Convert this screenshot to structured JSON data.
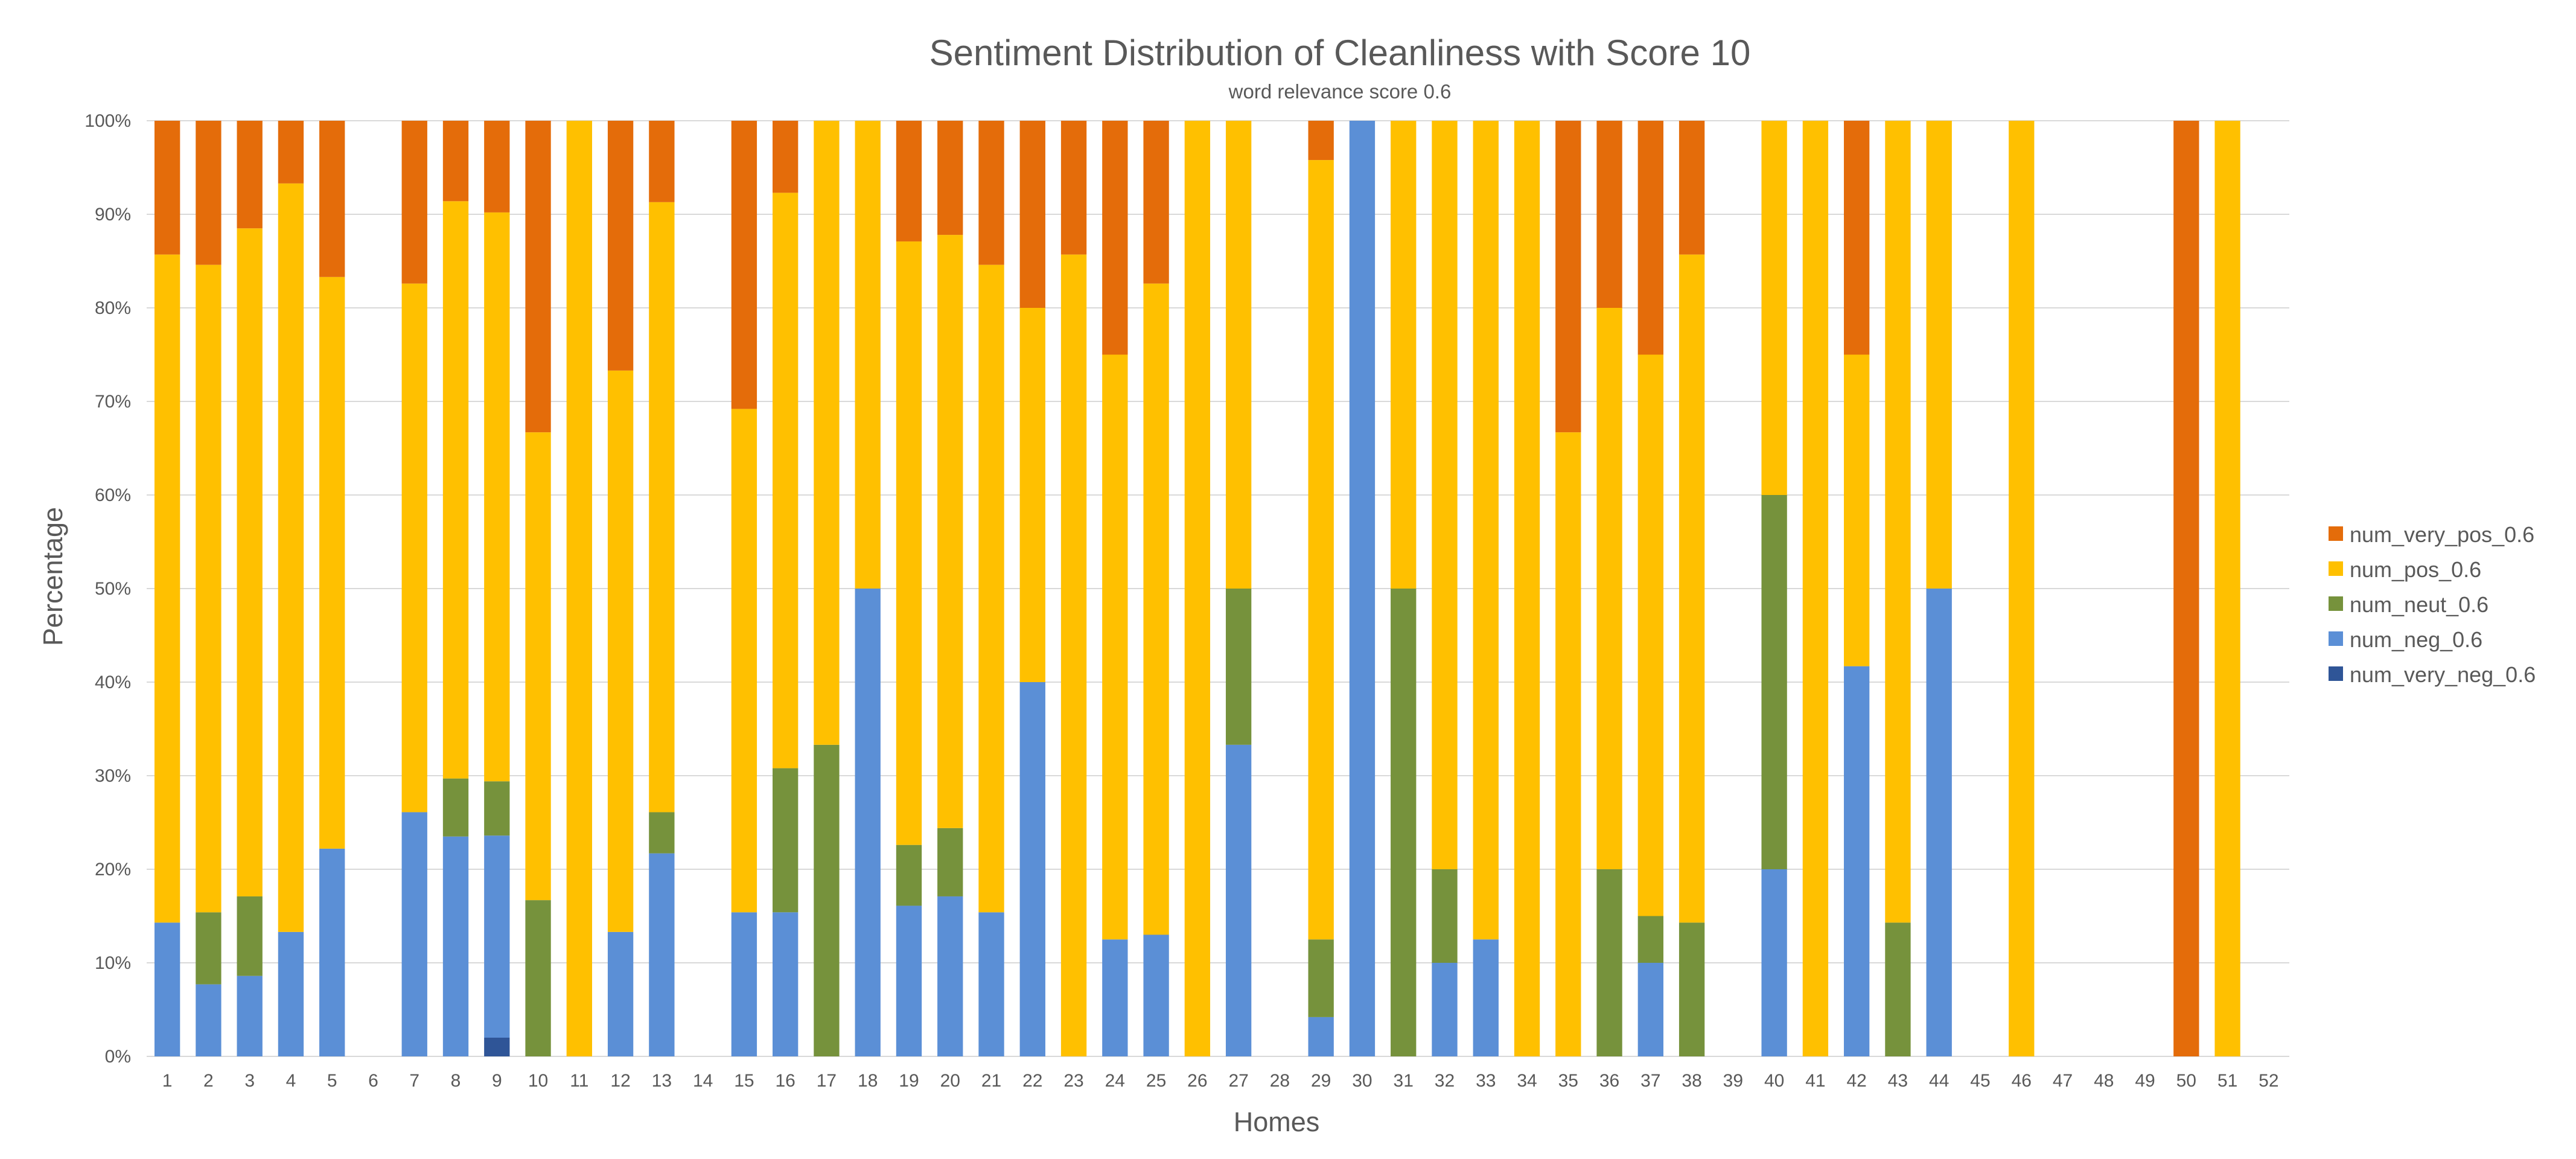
{
  "chart_data": {
    "type": "bar",
    "stacked": "percent",
    "title": "Sentiment Distribution of Cleanliness with Score 10",
    "subtitle": "word relevance score 0.6",
    "xlabel": "Homes",
    "ylabel": "Percentage",
    "ylim": [
      0,
      100
    ],
    "y_ticks": [
      "0%",
      "10%",
      "20%",
      "30%",
      "40%",
      "50%",
      "60%",
      "70%",
      "80%",
      "90%",
      "100%"
    ],
    "grid": true,
    "legend_position": "right",
    "categories": [
      "1",
      "2",
      "3",
      "4",
      "5",
      "6",
      "7",
      "8",
      "9",
      "10",
      "11",
      "12",
      "13",
      "14",
      "15",
      "16",
      "17",
      "18",
      "19",
      "20",
      "21",
      "22",
      "23",
      "24",
      "25",
      "26",
      "27",
      "28",
      "29",
      "30",
      "31",
      "32",
      "33",
      "34",
      "35",
      "36",
      "37",
      "38",
      "39",
      "40",
      "41",
      "42",
      "43",
      "44",
      "45",
      "46",
      "47",
      "48",
      "49",
      "50",
      "51",
      "52"
    ],
    "series": [
      {
        "name": "num_very_neg_0.6",
        "color": "#2f5597",
        "values": [
          0,
          0,
          0,
          0,
          0,
          0,
          0,
          0,
          2,
          0,
          0,
          0,
          0,
          0,
          0,
          0,
          0,
          0,
          0,
          0,
          0,
          0,
          0,
          0,
          0,
          0,
          0,
          0,
          0,
          0,
          0,
          0,
          0,
          0,
          0,
          0,
          0,
          0,
          0,
          0,
          0,
          0,
          0,
          0,
          0,
          0,
          0,
          0,
          0,
          0,
          0,
          0
        ]
      },
      {
        "name": "num_neg_0.6",
        "color": "#5b8fd6",
        "values": [
          14.3,
          7.7,
          8.6,
          13.3,
          22.2,
          0,
          26.1,
          23.5,
          21.6,
          0,
          0,
          13.3,
          21.7,
          0,
          15.4,
          15.4,
          0,
          50,
          16.1,
          17.1,
          15.4,
          40,
          0,
          12.5,
          13,
          0,
          33.3,
          0,
          4.2,
          100,
          0,
          10,
          12.5,
          0,
          0,
          0,
          10,
          0,
          0,
          20,
          0,
          41.7,
          0,
          50,
          0,
          0,
          0,
          0,
          0,
          0,
          0,
          0
        ]
      },
      {
        "name": "num_neut_0.6",
        "color": "#76923c",
        "values": [
          0,
          7.7,
          8.5,
          0,
          0,
          0,
          0,
          6.2,
          5.8,
          16.7,
          0,
          0,
          4.4,
          0,
          0,
          15.4,
          33.3,
          0,
          6.5,
          7.3,
          0,
          0,
          0,
          0,
          0,
          0,
          16.7,
          0,
          8.3,
          0,
          50,
          10,
          0,
          0,
          0,
          20,
          5,
          14.3,
          0,
          40,
          0,
          0,
          14.3,
          0,
          0,
          0,
          0,
          0,
          0,
          0,
          0,
          0
        ]
      },
      {
        "name": "num_pos_0.6",
        "color": "#ffc000",
        "values": [
          71.4,
          69.2,
          71.4,
          80,
          61.1,
          0,
          56.5,
          61.7,
          60.8,
          50,
          100,
          60,
          65.2,
          0,
          53.8,
          61.5,
          66.7,
          50,
          64.5,
          63.4,
          69.2,
          40,
          85.7,
          62.5,
          69.6,
          100,
          50,
          0,
          83.3,
          0,
          50,
          80,
          87.5,
          100,
          66.7,
          60,
          60,
          71.4,
          0,
          40,
          100,
          33.3,
          85.7,
          50,
          0,
          100,
          0,
          0,
          0,
          0,
          100,
          0
        ]
      },
      {
        "name": "num_very_pos_0.6",
        "color": "#e46c0a",
        "values": [
          14.3,
          15.4,
          11.5,
          6.7,
          16.7,
          0,
          17.4,
          8.6,
          9.8,
          33.3,
          0,
          26.7,
          8.7,
          0,
          30.8,
          7.7,
          0,
          0,
          12.9,
          12.2,
          15.4,
          20,
          14.3,
          25,
          17.4,
          0,
          0,
          0,
          4.2,
          0,
          0,
          0,
          0,
          0,
          33.3,
          20,
          25,
          14.3,
          0,
          0,
          0,
          25,
          0,
          0,
          0,
          0,
          0,
          0,
          0,
          100,
          0,
          0
        ]
      }
    ]
  }
}
